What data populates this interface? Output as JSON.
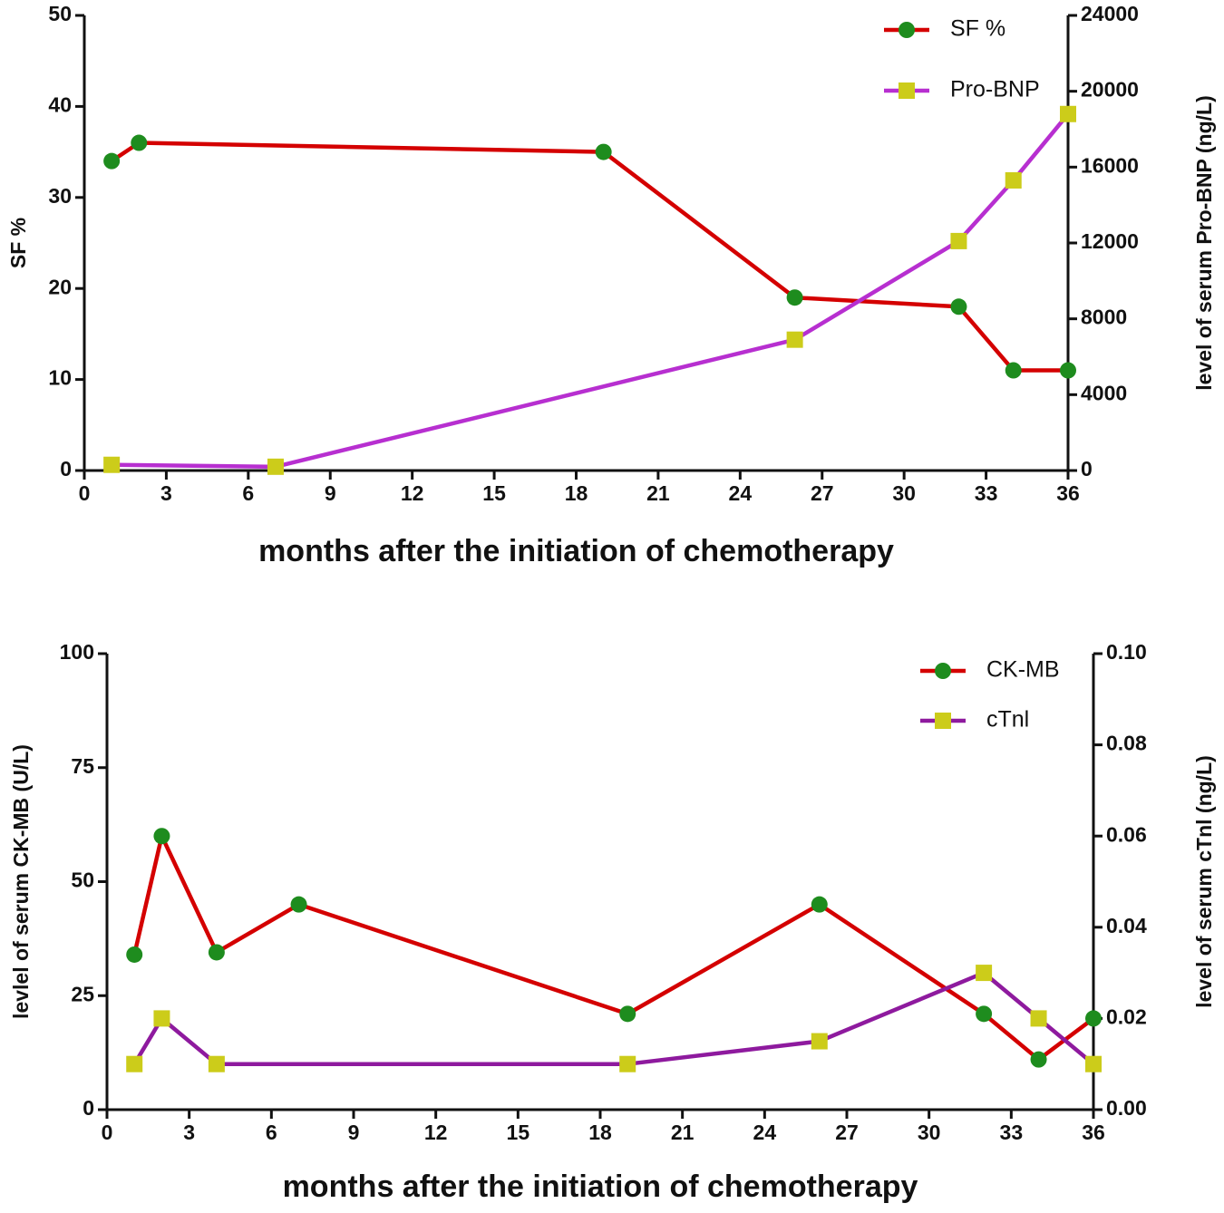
{
  "chart_data": [
    {
      "type": "line",
      "x_label": "months after the initiation of chemotherapy",
      "y_label": "SF  %",
      "y2_label": "level of serum Pro-BNP (ng/L)",
      "xlim": [
        0,
        36
      ],
      "xticks": [
        0,
        3,
        6,
        9,
        12,
        15,
        18,
        21,
        24,
        27,
        30,
        33,
        36
      ],
      "ylim": [
        0,
        50
      ],
      "yticks": [
        0,
        10,
        20,
        30,
        40,
        50
      ],
      "y2lim": [
        0,
        24000
      ],
      "y2ticks": [
        0,
        4000,
        8000,
        12000,
        16000,
        20000,
        24000
      ],
      "series": [
        {
          "name": "SF %",
          "color": "#d40000",
          "marker": "circle",
          "marker_color": "#1e8c1e",
          "x": [
            1,
            2,
            19,
            26,
            32,
            34,
            36
          ],
          "values": [
            34,
            36,
            35,
            19,
            18,
            11,
            11
          ]
        },
        {
          "name": "Pro-BNP",
          "color": "#b72fd0",
          "marker": "square",
          "marker_color": "#cccc1a",
          "axis": "y2",
          "x": [
            1,
            7,
            26,
            32,
            34,
            36
          ],
          "values": [
            300,
            200,
            6900,
            12100,
            15300,
            18800
          ]
        }
      ]
    },
    {
      "type": "line",
      "x_label": "months after the initiation of chemotherapy",
      "y_label": "levlel of serum CK-MB (U/L)",
      "y2_label": "level of serum cTnl (ng/L)",
      "xlim": [
        0,
        36
      ],
      "xticks": [
        0,
        3,
        6,
        9,
        12,
        15,
        18,
        21,
        24,
        27,
        30,
        33,
        36
      ],
      "ylim": [
        0,
        100
      ],
      "yticks": [
        0,
        25,
        50,
        75,
        100
      ],
      "y2lim": [
        0,
        0.1
      ],
      "y2ticks": [
        {
          "value": 0,
          "label": "0.00"
        },
        {
          "value": 0.02,
          "label": "0.02"
        },
        {
          "value": 0.04,
          "label": "0.04"
        },
        {
          "value": 0.06,
          "label": "0.06"
        },
        {
          "value": 0.08,
          "label": "0.08"
        },
        {
          "value": 0.1,
          "label": "0.10"
        }
      ],
      "series": [
        {
          "name": "CK-MB",
          "color": "#d40000",
          "marker": "circle",
          "marker_color": "#1e8c1e",
          "x": [
            1,
            2,
            4,
            7,
            19,
            26,
            32,
            34,
            36
          ],
          "values": [
            34,
            60,
            34.5,
            45,
            21,
            45,
            21,
            11,
            20
          ]
        },
        {
          "name": "cTnl",
          "color": "#8e1a9e",
          "marker": "square",
          "marker_color": "#cccc1a",
          "axis": "y2",
          "x": [
            1,
            2,
            4,
            19,
            26,
            32,
            34,
            36
          ],
          "values": [
            0.01,
            0.02,
            0.01,
            0.01,
            0.015,
            0.03,
            0.02,
            0.01
          ]
        }
      ]
    }
  ]
}
